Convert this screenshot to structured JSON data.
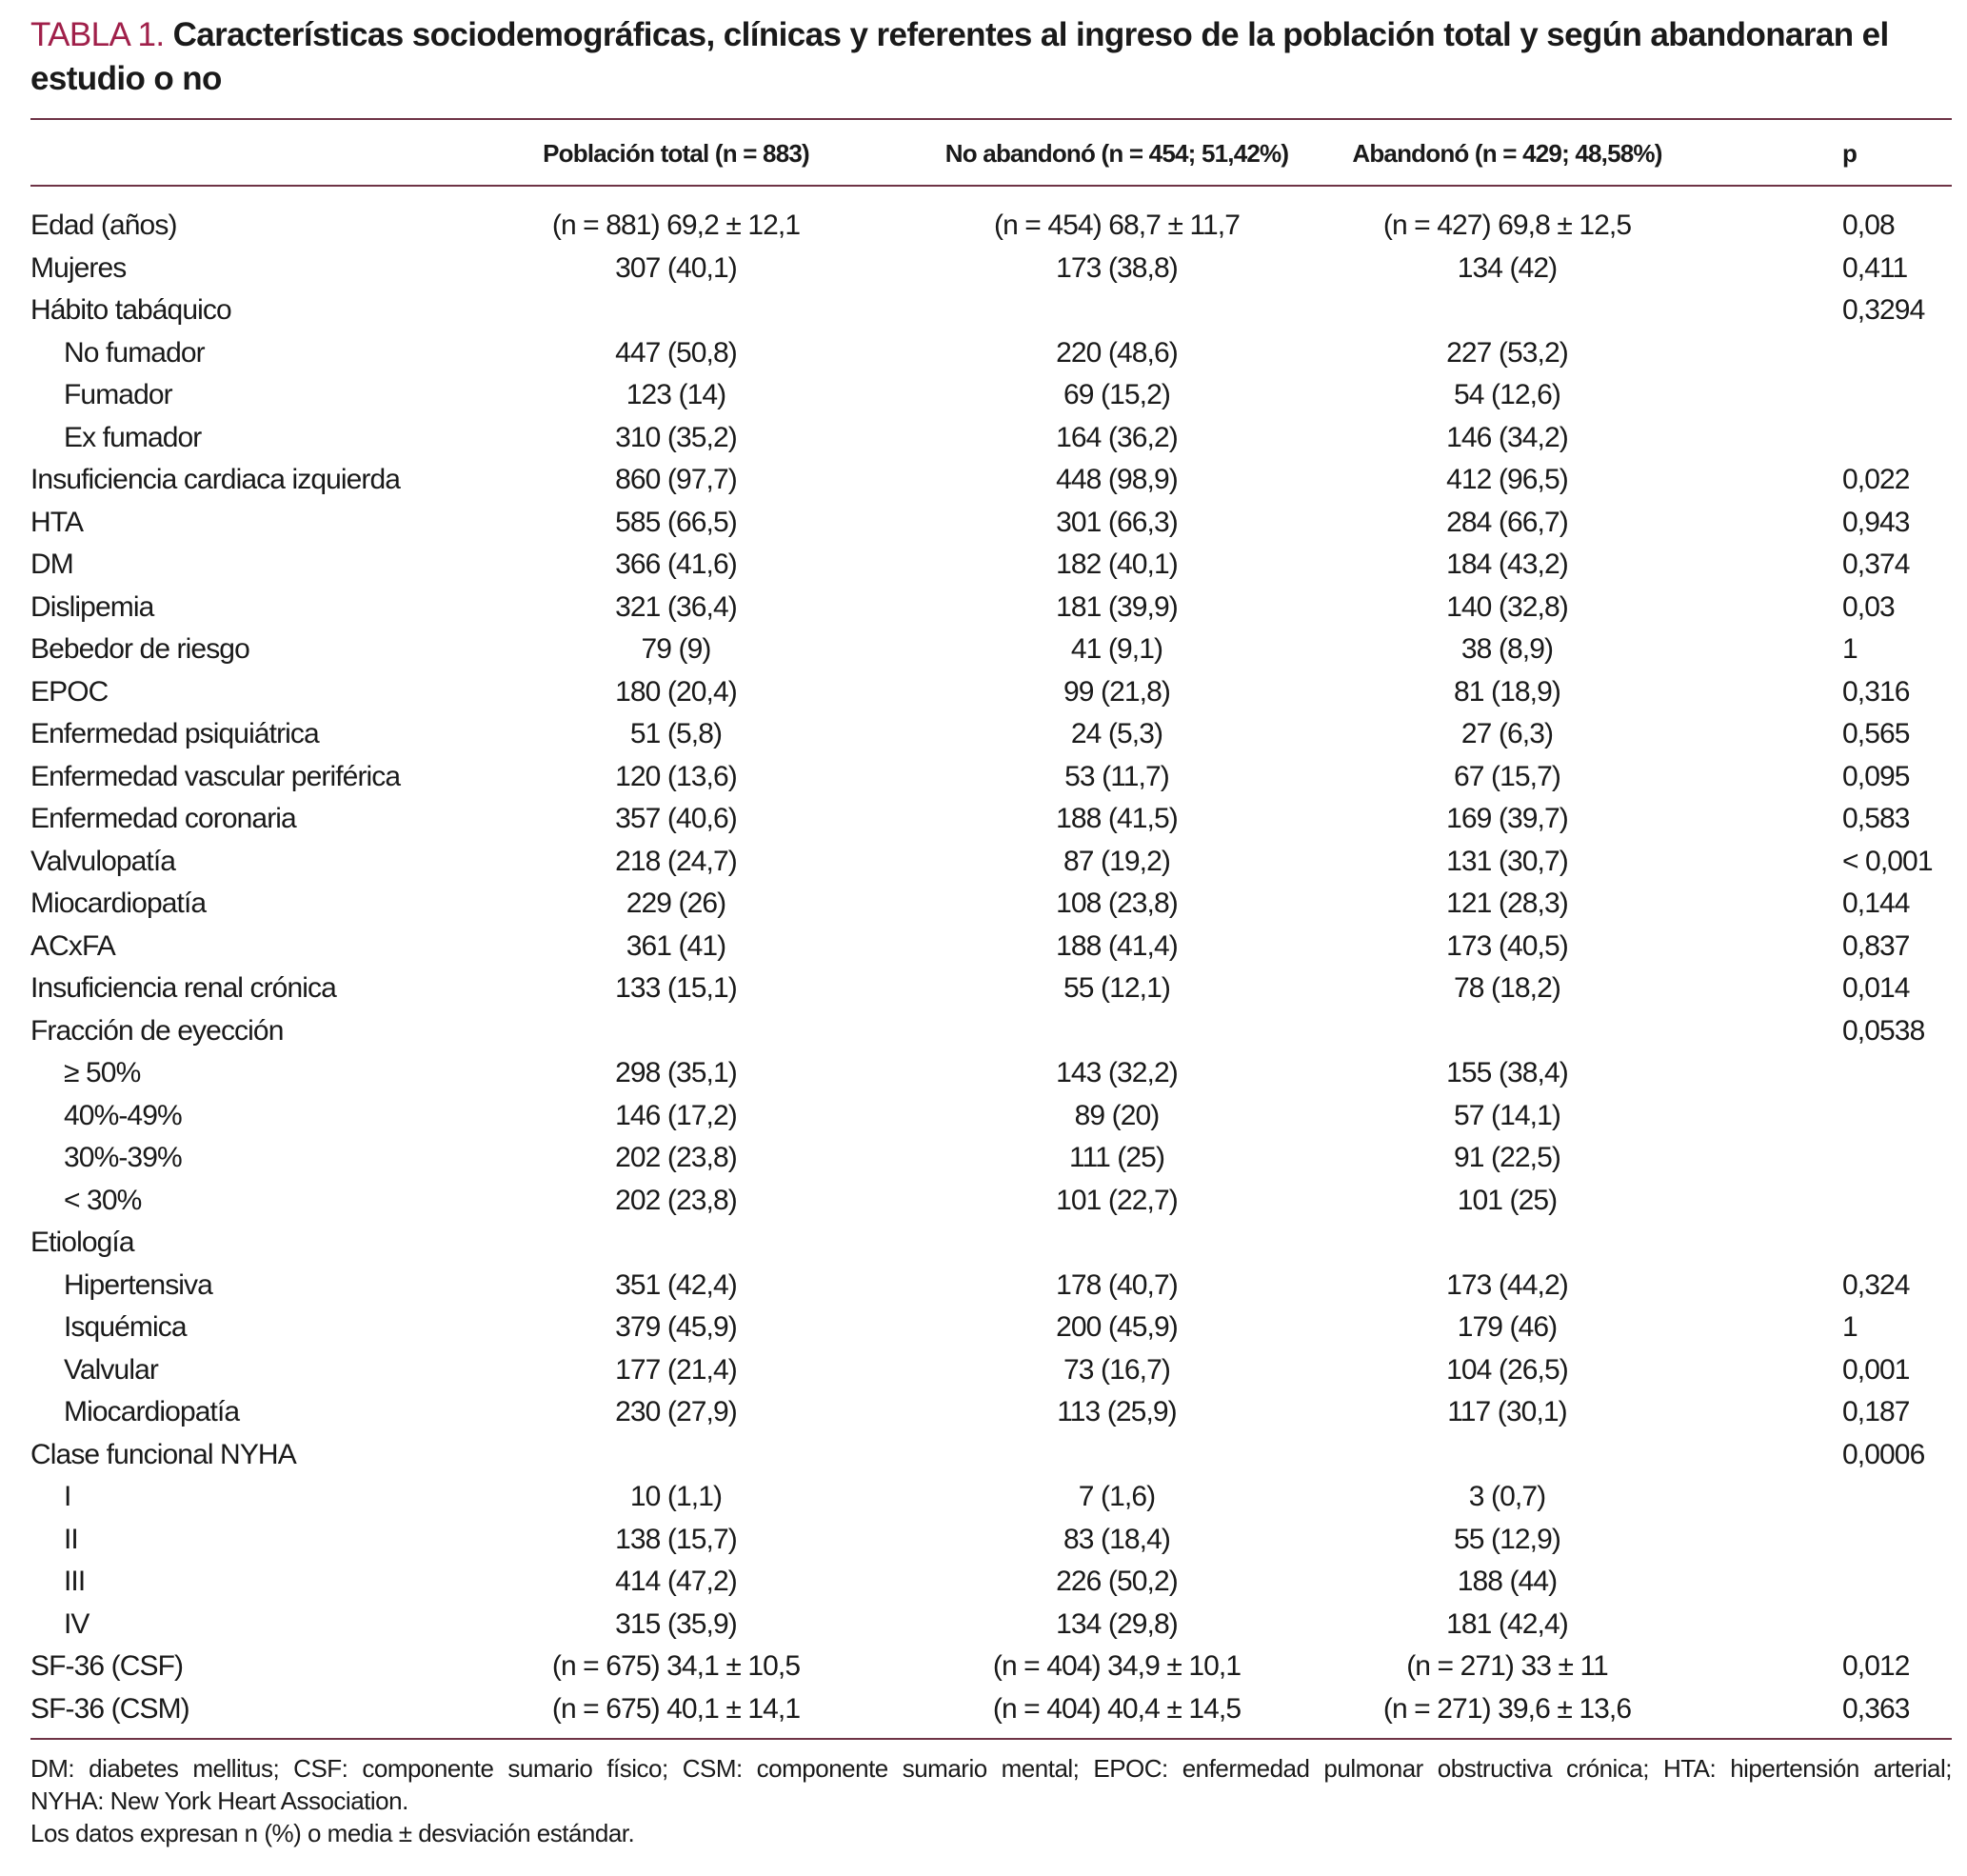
{
  "title": {
    "label": "TABLA 1.",
    "text": "Características sociodemográficas, clínicas y referentes al ingreso de la población total y según abandonaran el estudio o no"
  },
  "colors": {
    "title_label": "#a0204a",
    "rules": "#6e3346"
  },
  "columns": [
    "",
    "Población total (n = 883)",
    "No abandonó (n = 454; 51,42%)",
    "Abandonó (n = 429; 48,58%)",
    "p"
  ],
  "rows": [
    {
      "label": "Edad (años)",
      "level": 0,
      "c1": "(n = 881) 69,2 ± 12,1",
      "c2": "(n = 454) 68,7 ± 11,7",
      "c3": "(n = 427) 69,8 ± 12,5",
      "p": "0,08"
    },
    {
      "label": "Mujeres",
      "level": 0,
      "c1": "307 (40,1)",
      "c2": "173 (38,8)",
      "c3": "134 (42)",
      "p": "0,411"
    },
    {
      "label": "Hábito tabáquico",
      "level": 0,
      "c1": "",
      "c2": "",
      "c3": "",
      "p": "0,3294"
    },
    {
      "label": "No fumador",
      "level": 1,
      "c1": "447 (50,8)",
      "c2": "220 (48,6)",
      "c3": "227 (53,2)",
      "p": ""
    },
    {
      "label": "Fumador",
      "level": 1,
      "c1": "123 (14)",
      "c2": "69 (15,2)",
      "c3": "54 (12,6)",
      "p": ""
    },
    {
      "label": "Ex fumador",
      "level": 1,
      "c1": "310 (35,2)",
      "c2": "164 (36,2)",
      "c3": "146 (34,2)",
      "p": ""
    },
    {
      "label": "Insuficiencia cardiaca izquierda",
      "level": 0,
      "c1": "860 (97,7)",
      "c2": "448 (98,9)",
      "c3": "412 (96,5)",
      "p": "0,022"
    },
    {
      "label": "HTA",
      "level": 0,
      "c1": "585 (66,5)",
      "c2": "301 (66,3)",
      "c3": "284 (66,7)",
      "p": "0,943"
    },
    {
      "label": "DM",
      "level": 0,
      "c1": "366 (41,6)",
      "c2": "182 (40,1)",
      "c3": "184 (43,2)",
      "p": "0,374"
    },
    {
      "label": "Dislipemia",
      "level": 0,
      "c1": "321 (36,4)",
      "c2": "181 (39,9)",
      "c3": "140 (32,8)",
      "p": "0,03"
    },
    {
      "label": "Bebedor de riesgo",
      "level": 0,
      "c1": "79 (9)",
      "c2": "41 (9,1)",
      "c3": "38 (8,9)",
      "p": "1"
    },
    {
      "label": "EPOC",
      "level": 0,
      "c1": "180 (20,4)",
      "c2": "99 (21,8)",
      "c3": "81 (18,9)",
      "p": "0,316"
    },
    {
      "label": "Enfermedad psiquiátrica",
      "level": 0,
      "c1": "51 (5,8)",
      "c2": "24 (5,3)",
      "c3": "27 (6,3)",
      "p": "0,565"
    },
    {
      "label": "Enfermedad vascular periférica",
      "level": 0,
      "c1": "120 (13,6)",
      "c2": "53 (11,7)",
      "c3": "67 (15,7)",
      "p": "0,095"
    },
    {
      "label": "Enfermedad coronaria",
      "level": 0,
      "c1": "357 (40,6)",
      "c2": "188 (41,5)",
      "c3": "169 (39,7)",
      "p": "0,583"
    },
    {
      "label": "Valvulopatía",
      "level": 0,
      "c1": "218 (24,7)",
      "c2": "87 (19,2)",
      "c3": "131 (30,7)",
      "p": "< 0,001"
    },
    {
      "label": "Miocardiopatía",
      "level": 0,
      "c1": "229 (26)",
      "c2": "108 (23,8)",
      "c3": "121 (28,3)",
      "p": "0,144"
    },
    {
      "label": "ACxFA",
      "level": 0,
      "c1": "361 (41)",
      "c2": "188 (41,4)",
      "c3": "173 (40,5)",
      "p": "0,837"
    },
    {
      "label": "Insuficiencia renal crónica",
      "level": 0,
      "c1": "133 (15,1)",
      "c2": "55 (12,1)",
      "c3": "78 (18,2)",
      "p": "0,014"
    },
    {
      "label": "Fracción de eyección",
      "level": 0,
      "c1": "",
      "c2": "",
      "c3": "",
      "p": "0,0538"
    },
    {
      "label": "≥ 50%",
      "level": 1,
      "c1": "298 (35,1)",
      "c2": "143 (32,2)",
      "c3": "155 (38,4)",
      "p": ""
    },
    {
      "label": "40%-49%",
      "level": 1,
      "c1": "146 (17,2)",
      "c2": "89 (20)",
      "c3": "57 (14,1)",
      "p": ""
    },
    {
      "label": "30%-39%",
      "level": 1,
      "c1": "202 (23,8)",
      "c2": "111 (25)",
      "c3": "91 (22,5)",
      "p": ""
    },
    {
      "label": "< 30%",
      "level": 1,
      "c1": "202 (23,8)",
      "c2": "101 (22,7)",
      "c3": "101 (25)",
      "p": ""
    },
    {
      "label": "Etiología",
      "level": 0,
      "c1": "",
      "c2": "",
      "c3": "",
      "p": ""
    },
    {
      "label": "Hipertensiva",
      "level": 1,
      "c1": "351 (42,4)",
      "c2": "178 (40,7)",
      "c3": "173 (44,2)",
      "p": "0,324"
    },
    {
      "label": "Isquémica",
      "level": 1,
      "c1": "379 (45,9)",
      "c2": "200 (45,9)",
      "c3": "179 (46)",
      "p": "1"
    },
    {
      "label": "Valvular",
      "level": 1,
      "c1": "177 (21,4)",
      "c2": "73 (16,7)",
      "c3": "104 (26,5)",
      "p": "0,001"
    },
    {
      "label": "Miocardiopatía",
      "level": 1,
      "c1": "230 (27,9)",
      "c2": "113 (25,9)",
      "c3": "117 (30,1)",
      "p": "0,187"
    },
    {
      "label": "Clase funcional NYHA",
      "level": 0,
      "c1": "",
      "c2": "",
      "c3": "",
      "p": "0,0006"
    },
    {
      "label": "I",
      "level": 1,
      "c1": "10 (1,1)",
      "c2": "7 (1,6)",
      "c3": "3 (0,7)",
      "p": ""
    },
    {
      "label": "II",
      "level": 1,
      "c1": "138 (15,7)",
      "c2": "83 (18,4)",
      "c3": "55 (12,9)",
      "p": ""
    },
    {
      "label": "III",
      "level": 1,
      "c1": "414 (47,2)",
      "c2": "226 (50,2)",
      "c3": "188 (44)",
      "p": ""
    },
    {
      "label": "IV",
      "level": 1,
      "c1": "315 (35,9)",
      "c2": "134 (29,8)",
      "c3": "181 (42,4)",
      "p": ""
    },
    {
      "label": "SF-36 (CSF)",
      "level": 0,
      "c1": "(n = 675) 34,1 ± 10,5",
      "c2": "(n = 404) 34,9 ± 10,1",
      "c3": "(n = 271) 33 ± 11",
      "p": "0,012"
    },
    {
      "label": "SF-36 (CSM)",
      "level": 0,
      "c1": "(n = 675) 40,1 ± 14,1",
      "c2": "(n = 404) 40,4 ± 14,5",
      "c3": "(n = 271) 39,6 ± 13,6",
      "p": "0,363"
    }
  ],
  "footnotes": [
    "DM: diabetes mellitus; CSF: componente sumario físico; CSM: componente sumario mental; EPOC: enfermedad pulmonar obstructiva crónica; HTA: hipertensión arterial;",
    "NYHA: New York Heart Association.",
    "Los datos expresan n (%) o media ± desviación estándar."
  ]
}
